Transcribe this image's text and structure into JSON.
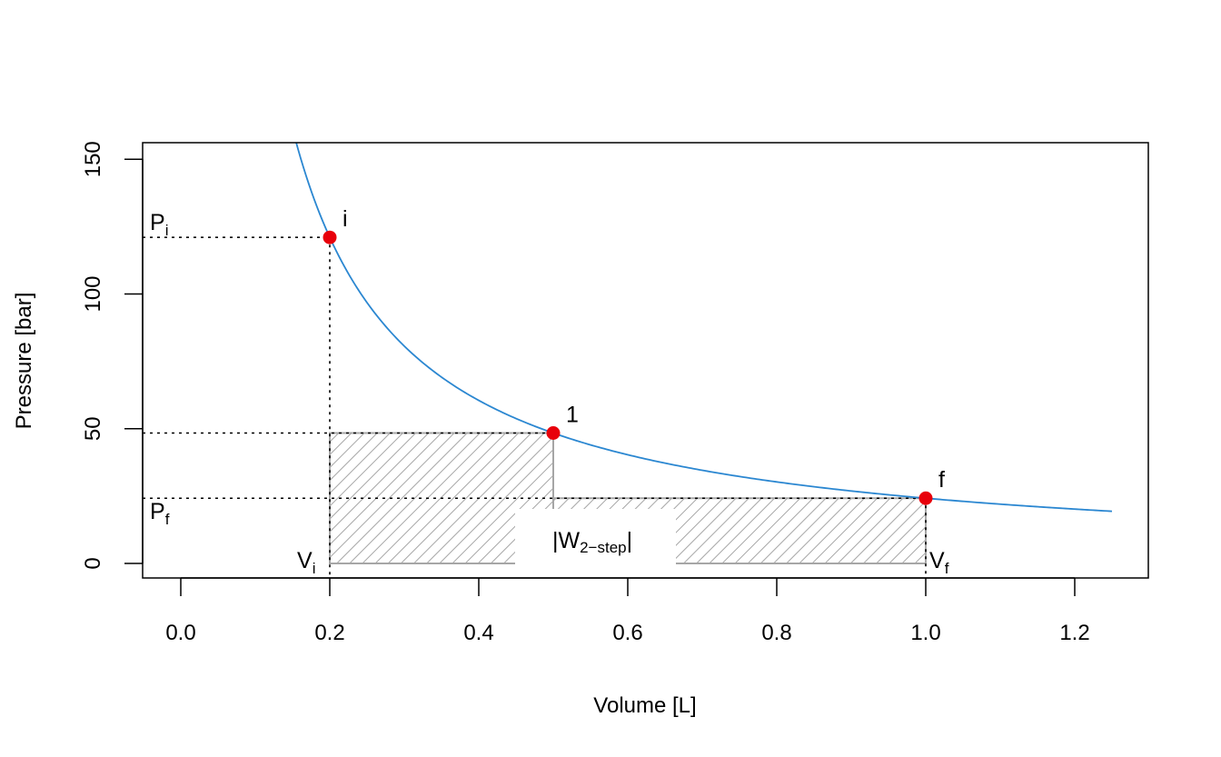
{
  "chart_data": {
    "type": "line",
    "xlabel": "Volume [L]",
    "ylabel": "Pressure [bar]",
    "xlim": [
      -0.05,
      1.3
    ],
    "ylim": [
      -6,
      155
    ],
    "x_ticks": [
      "0.0",
      "0.2",
      "0.4",
      "0.6",
      "0.8",
      "1.0",
      "1.2"
    ],
    "y_ticks": [
      "0",
      "50",
      "100",
      "150"
    ],
    "x_tick_values": [
      0,
      0.2,
      0.4,
      0.6,
      0.8,
      1.0,
      1.2
    ],
    "y_tick_values": [
      0,
      50,
      100,
      150
    ],
    "grid": false,
    "curve": {
      "equation": "P = 24.2 / V",
      "constant": 24.2,
      "x_start": 0.15,
      "x_end": 1.25,
      "color": "#2b87d1"
    },
    "points": [
      {
        "name": "i",
        "label": "i",
        "x": 0.2,
        "y": 121
      },
      {
        "name": "1",
        "label": "1",
        "x": 0.5,
        "y": 48.4
      },
      {
        "name": "f",
        "label": "f",
        "x": 1.0,
        "y": 24.2
      }
    ],
    "point_color": "#e8000b",
    "work_region": {
      "steps": [
        {
          "x0": 0.2,
          "x1": 0.5,
          "p": 48.4
        },
        {
          "x0": 0.5,
          "x1": 1.0,
          "p": 24.2
        }
      ],
      "label_main": "|W",
      "label_sub": "2−step",
      "label_end": "|",
      "color": "#a6a6a6"
    },
    "annotations": {
      "p_i": {
        "main": "P",
        "sub": "i"
      },
      "p_f": {
        "main": "P",
        "sub": "f"
      },
      "v_i": {
        "main": "V",
        "sub": "i"
      },
      "v_f": {
        "main": "V",
        "sub": "f"
      }
    }
  }
}
